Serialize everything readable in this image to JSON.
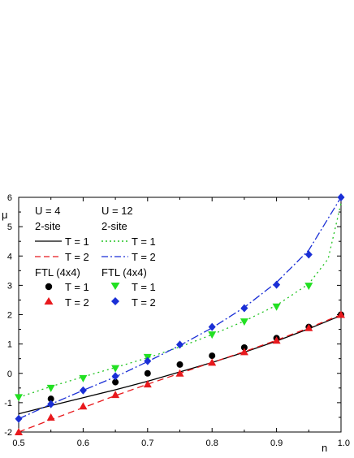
{
  "chart_data": {
    "type": "line",
    "xlabel": "n",
    "ylabel": "μ",
    "xlim": [
      0.5,
      1.0
    ],
    "ylim": [
      -2,
      6
    ],
    "xticks": [
      "0.5",
      "0.6",
      "0.7",
      "0.8",
      "0.9",
      "1.0"
    ],
    "yticks": [
      "-2",
      "-1",
      "0",
      "1",
      "2",
      "3",
      "4",
      "5",
      "6"
    ],
    "grid": false,
    "legend": {
      "placement": "top-left",
      "groups": [
        {
          "heading1": "U = 4",
          "heading2": "2-site"
        },
        {
          "heading1": "U = 12",
          "heading2": "2-site"
        }
      ],
      "ftl_heading": "FTL (4x4)",
      "t1": "T = 1",
      "t2": "T = 2"
    },
    "lines": [
      {
        "name": "U=4 2-site T=1",
        "color": "#000000",
        "dash": "solid",
        "x": [
          0.5,
          0.55,
          0.6,
          0.65,
          0.7,
          0.75,
          0.8,
          0.85,
          0.9,
          0.95,
          1.0
        ],
        "y": [
          -1.38,
          -1.1,
          -0.83,
          -0.56,
          -0.27,
          0.05,
          0.37,
          0.72,
          1.1,
          1.52,
          1.97
        ]
      },
      {
        "name": "U=4 2-site T=2",
        "color": "#e8191d",
        "dash": "8,5",
        "x": [
          0.5,
          0.55,
          0.6,
          0.65,
          0.7,
          0.75,
          0.8,
          0.85,
          0.9,
          0.95,
          1.0
        ],
        "y": [
          -2.0,
          -1.58,
          -1.17,
          -0.76,
          -0.37,
          0.0,
          0.37,
          0.74,
          1.13,
          1.55,
          2.0
        ]
      },
      {
        "name": "U=12 2-site T=1",
        "color": "#22c422",
        "dash": "2,4",
        "x": [
          0.5,
          0.55,
          0.6,
          0.65,
          0.7,
          0.75,
          0.8,
          0.85,
          0.9,
          0.95,
          0.98,
          1.0
        ],
        "y": [
          -0.82,
          -0.45,
          -0.12,
          0.2,
          0.53,
          0.9,
          1.32,
          1.78,
          2.32,
          3.05,
          3.9,
          5.8
        ]
      },
      {
        "name": "U=12 2-site T=2",
        "color": "#1a2fd6",
        "dash": "10,3,2,3",
        "x": [
          0.5,
          0.55,
          0.6,
          0.65,
          0.7,
          0.75,
          0.8,
          0.85,
          0.9,
          0.95,
          1.0
        ],
        "y": [
          -1.55,
          -1.05,
          -0.58,
          -0.12,
          0.4,
          0.95,
          1.55,
          2.25,
          3.1,
          4.2,
          6.0
        ]
      }
    ],
    "markers": [
      {
        "name": "U=4 FTL T=1",
        "shape": "circle",
        "color": "#000000",
        "x": [
          0.55,
          0.65,
          0.7,
          0.75,
          0.8,
          0.85,
          0.9,
          0.95,
          1.0
        ],
        "y": [
          -0.87,
          -0.3,
          0.0,
          0.3,
          0.6,
          0.88,
          1.2,
          1.58,
          2.0
        ]
      },
      {
        "name": "U=4 FTL T=2",
        "shape": "triangle-up",
        "color": "#e8191d",
        "x": [
          0.5,
          0.55,
          0.6,
          0.65,
          0.7,
          0.75,
          0.8,
          0.85,
          0.9,
          0.95,
          1.0
        ],
        "y": [
          -2.0,
          -1.5,
          -1.12,
          -0.73,
          -0.37,
          0.0,
          0.37,
          0.73,
          1.12,
          1.55,
          2.0
        ]
      },
      {
        "name": "U=12 FTL T=1",
        "shape": "triangle-down",
        "color": "#22e022",
        "x": [
          0.5,
          0.55,
          0.6,
          0.65,
          0.7,
          0.8,
          0.85,
          0.9,
          0.95
        ],
        "y": [
          -0.82,
          -0.5,
          -0.17,
          0.17,
          0.55,
          1.32,
          1.76,
          2.27,
          2.98
        ]
      },
      {
        "name": "U=12 FTL T=2",
        "shape": "diamond",
        "color": "#1a2fd6",
        "x": [
          0.5,
          0.55,
          0.6,
          0.65,
          0.7,
          0.75,
          0.8,
          0.85,
          0.9,
          0.95,
          1.0
        ],
        "y": [
          -1.55,
          -1.05,
          -0.58,
          -0.1,
          0.42,
          0.98,
          1.58,
          2.22,
          3.02,
          4.05,
          6.0
        ]
      }
    ]
  }
}
